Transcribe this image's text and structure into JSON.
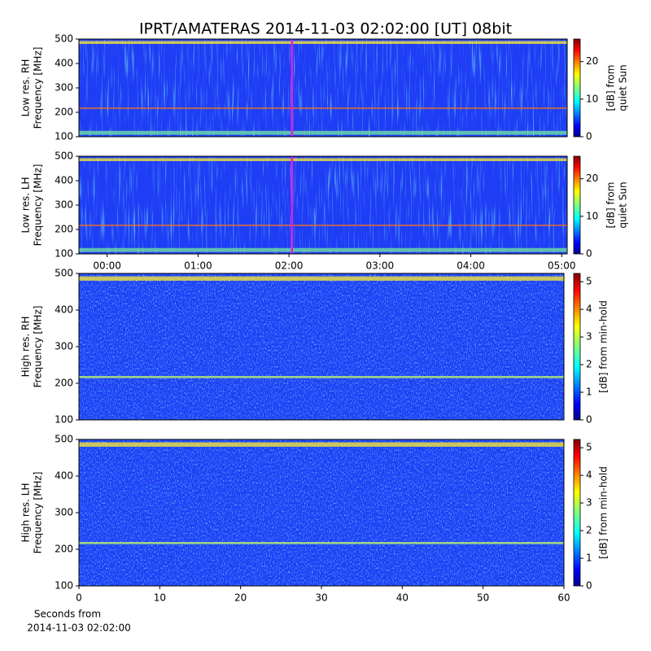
{
  "title": "IPRT/AMATERAS 2014-11-03 02:02:00 [UT]   08bit",
  "chart_data": [
    {
      "type": "spectrogram",
      "ylabel": [
        "Low res. RH",
        "Frequency [MHz]"
      ],
      "xlim": [
        -0.31,
        5.06
      ],
      "ylim": [
        100,
        500
      ],
      "yticks": [
        100,
        200,
        300,
        400,
        500
      ],
      "vline": {
        "x": 2.033,
        "color": "#e020e0"
      },
      "colorbar": {
        "colormap": "jet",
        "lim": [
          0,
          26
        ],
        "ticks": [
          0,
          10,
          20
        ],
        "label": [
          "[dB] from",
          "quiet Sun"
        ]
      }
    },
    {
      "type": "spectrogram",
      "ylabel": [
        "Low res. LH",
        "Frequency [MHz]"
      ],
      "xlim": [
        -0.31,
        5.06
      ],
      "ylim": [
        100,
        500
      ],
      "yticks": [
        100,
        200,
        300,
        400,
        500
      ],
      "xticks": [
        {
          "value": 0,
          "label": "00:00"
        },
        {
          "value": 1,
          "label": "01:00"
        },
        {
          "value": 2,
          "label": "02:00"
        },
        {
          "value": 3,
          "label": "03:00"
        },
        {
          "value": 4,
          "label": "04:00"
        },
        {
          "value": 5,
          "label": "05:00"
        }
      ],
      "vline": {
        "x": 2.033,
        "color": "#e020e0"
      },
      "colorbar": {
        "colormap": "jet",
        "lim": [
          0,
          26
        ],
        "ticks": [
          0,
          10,
          20
        ],
        "label": [
          "[dB] from",
          "quiet Sun"
        ]
      }
    },
    {
      "type": "spectrogram",
      "ylabel": [
        "High res. RH",
        "Frequency [MHz]"
      ],
      "xlim": [
        0,
        60
      ],
      "ylim": [
        100,
        500
      ],
      "yticks": [
        100,
        200,
        300,
        400,
        500
      ],
      "colorbar": {
        "colormap": "jet",
        "lim": [
          0,
          5.3
        ],
        "ticks": [
          0,
          1,
          2,
          3,
          4,
          5
        ],
        "label": [
          "[dB] from min-hold"
        ]
      }
    },
    {
      "type": "spectrogram",
      "ylabel": [
        "High res. LH",
        "Frequency [MHz]"
      ],
      "xlim": [
        0,
        60
      ],
      "ylim": [
        100,
        500
      ],
      "yticks": [
        100,
        200,
        300,
        400,
        500
      ],
      "xticks": [
        0,
        10,
        20,
        30,
        40,
        50,
        60
      ],
      "xlabel": [
        "Seconds from",
        "2014-11-03 02:02:00"
      ],
      "colorbar": {
        "colormap": "jet",
        "lim": [
          0,
          5.3
        ],
        "ticks": [
          0,
          1,
          2,
          3,
          4,
          5
        ],
        "label": [
          "[dB] from min-hold"
        ]
      }
    }
  ]
}
